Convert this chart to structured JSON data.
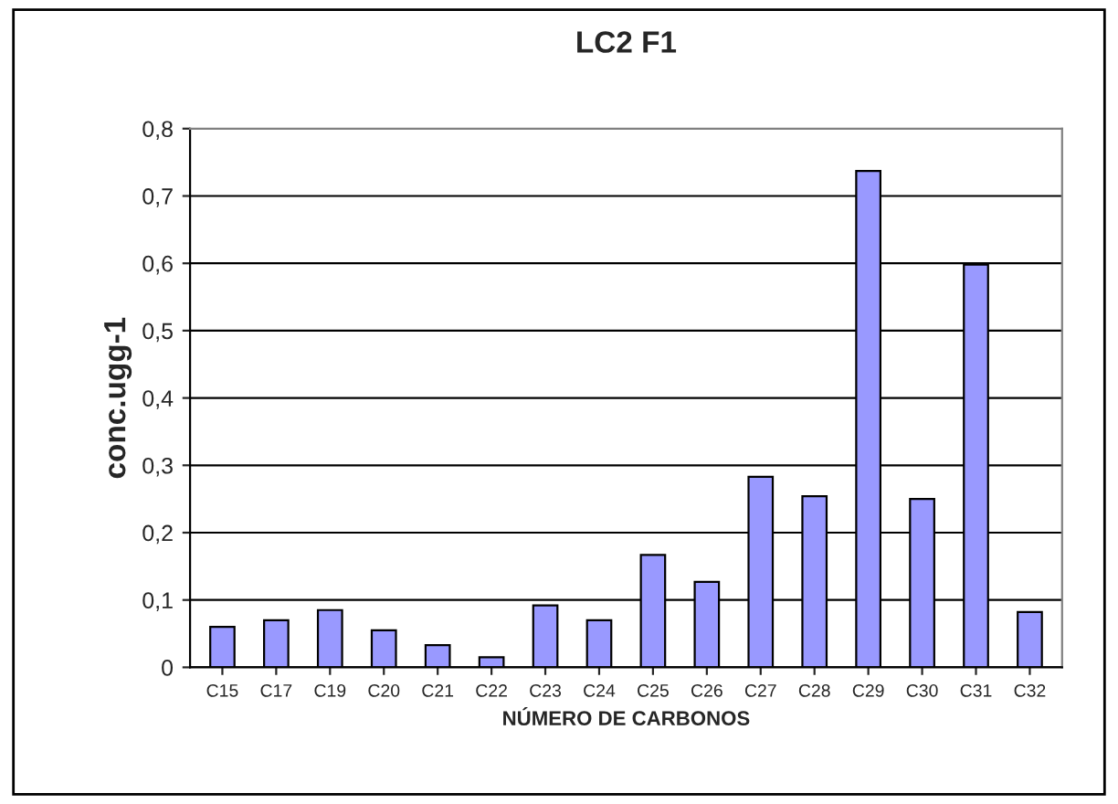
{
  "chart_data": {
    "type": "bar",
    "title": "LC2 F1",
    "xlabel": "NÚMERO DE CARBONOS",
    "ylabel": "conc.ugg-1",
    "categories": [
      "C15",
      "C17",
      "C19",
      "C20",
      "C21",
      "C22",
      "C23",
      "C24",
      "C25",
      "C26",
      "C27",
      "C28",
      "C29",
      "C30",
      "C31",
      "C32"
    ],
    "values": [
      0.06,
      0.07,
      0.085,
      0.055,
      0.033,
      0.015,
      0.092,
      0.07,
      0.167,
      0.127,
      0.283,
      0.254,
      0.737,
      0.25,
      0.598,
      0.082
    ],
    "color": "#9999ff",
    "ylim": [
      0,
      0.8
    ],
    "yticks": [
      {
        "value": 0,
        "label": "0"
      },
      {
        "value": 0.1,
        "label": "0,1"
      },
      {
        "value": 0.2,
        "label": "0,2"
      },
      {
        "value": 0.3,
        "label": "0,3"
      },
      {
        "value": 0.4,
        "label": "0,4"
      },
      {
        "value": 0.5,
        "label": "0,5"
      },
      {
        "value": 0.6,
        "label": "0,6"
      },
      {
        "value": 0.7,
        "label": "0,7"
      },
      {
        "value": 0.8,
        "label": "0,8"
      }
    ],
    "grid": "y"
  }
}
